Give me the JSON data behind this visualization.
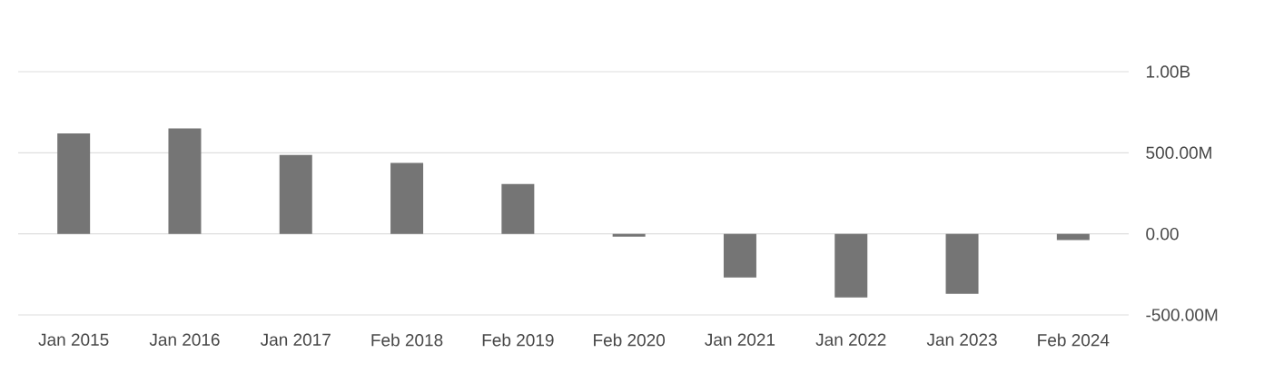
{
  "chart_data": {
    "type": "bar",
    "categories": [
      "Jan 2015",
      "Jan 2016",
      "Jan 2017",
      "Feb 2018",
      "Feb 2019",
      "Feb 2020",
      "Jan 2021",
      "Jan 2022",
      "Jan 2023",
      "Feb 2024"
    ],
    "values": [
      620000000,
      650000000,
      487000000,
      437000000,
      308000000,
      -17000000,
      -269000000,
      -392000000,
      -370000000,
      -39000000
    ],
    "color": "#757575",
    "ylim": [
      -500000000,
      1000000000
    ],
    "yticks": [
      {
        "value": -500000000,
        "label": "-500.00M"
      },
      {
        "value": 0,
        "label": "0.00"
      },
      {
        "value": 500000000,
        "label": "500.00M"
      },
      {
        "value": 1000000000,
        "label": "1.00B"
      }
    ],
    "grid": "y"
  }
}
